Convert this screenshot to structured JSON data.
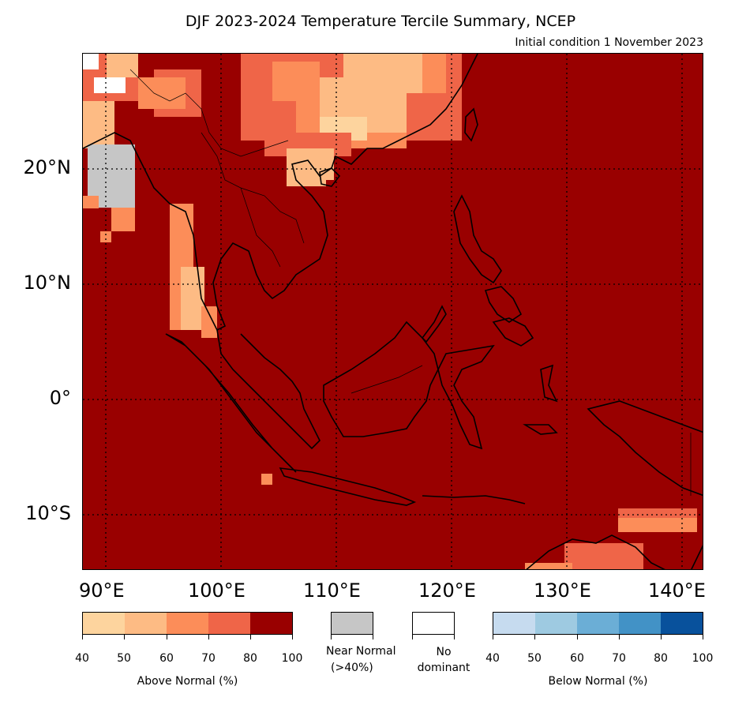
{
  "header": {
    "title": "DJF 2023-2024 Temperature Tercile Summary, NCEP",
    "subtitle": "Initial condition 1 November 2023"
  },
  "map": {
    "lat_labels": [
      "20°N",
      "10°N",
      "0°",
      "10°S"
    ],
    "lon_labels": [
      "90°E",
      "100°E",
      "110°E",
      "120°E",
      "130°E",
      "140°E"
    ],
    "dominant_color": "#990000"
  },
  "legend": {
    "above": {
      "label": "Above Normal (%)",
      "ticks": [
        "40",
        "50",
        "60",
        "70",
        "80",
        "100"
      ],
      "colors": [
        "#fdd49e",
        "#fdbb84",
        "#fc8d59",
        "#ef6548",
        "#990000"
      ]
    },
    "near": {
      "label_line1": "Near Normal",
      "label_line2": "(>40%)",
      "color": "#c6c6c6"
    },
    "none": {
      "label_line1": "No",
      "label_line2": "dominant",
      "color": "#ffffff"
    },
    "below": {
      "label": "Below Normal (%)",
      "ticks": [
        "40",
        "50",
        "60",
        "70",
        "80",
        "100"
      ],
      "colors": [
        "#c6dbef",
        "#9ecae1",
        "#6baed6",
        "#4292c6",
        "#08519c"
      ]
    }
  }
}
